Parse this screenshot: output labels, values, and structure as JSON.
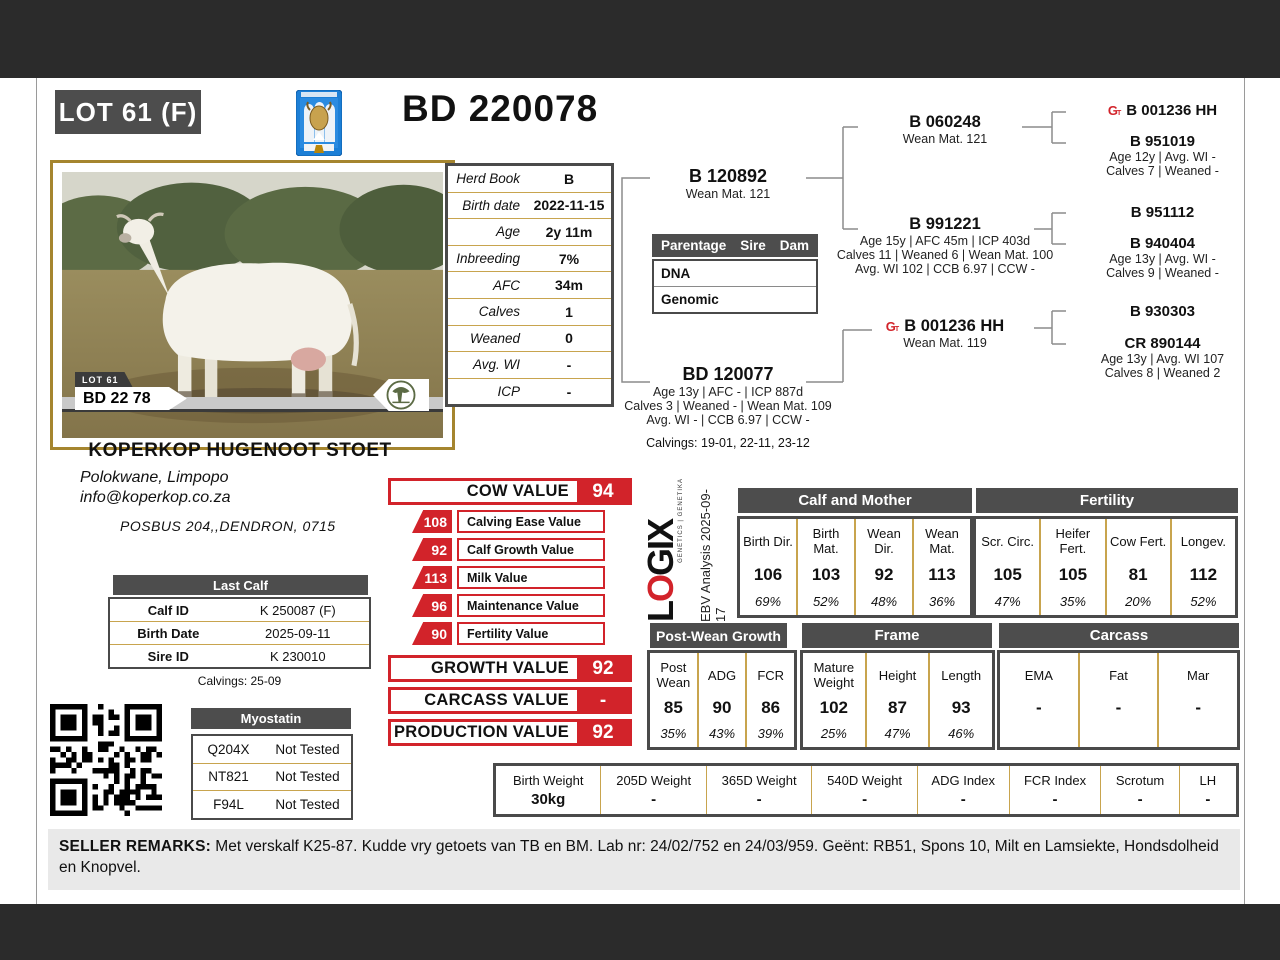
{
  "page": {
    "lot": "LOT 61 (F)",
    "title": "BD 220078"
  },
  "photo": {
    "lot_chip": "LOT 61",
    "ear_tag": "BD 22 78"
  },
  "herd_table": {
    "rows": [
      {
        "label": "Herd Book",
        "value": "B"
      },
      {
        "label": "Birth date",
        "value": "2022-11-15"
      },
      {
        "label": "Age",
        "value": "2y 11m"
      },
      {
        "label": "Inbreeding",
        "value": "7%"
      },
      {
        "label": "AFC",
        "value": "34m"
      },
      {
        "label": "Calves",
        "value": "1"
      },
      {
        "label": "Weaned",
        "value": "0"
      },
      {
        "label": "Avg. WI",
        "value": "-"
      },
      {
        "label": "ICP",
        "value": "-"
      }
    ]
  },
  "parentage": {
    "title": "Parentage",
    "sire_col": "Sire",
    "dam_col": "Dam",
    "rows": [
      "DNA",
      "Genomic"
    ]
  },
  "icons": {
    "genomic_g": "G",
    "genomic_t": "T"
  },
  "pedigree": {
    "sire": {
      "name": "B 120892",
      "lines": [
        "Wean Mat. 121"
      ]
    },
    "dam": {
      "name": "BD 120077",
      "lines": [
        "Age 13y | AFC - | ICP 887d",
        "Calves 3 | Weaned - | Wean Mat. 109",
        "Avg. WI - | CCB 6.97 | CCW -"
      ],
      "calvings": "Calvings: 19-01, 22-11, 23-12"
    },
    "gen2": [
      {
        "name": "B 060248",
        "lines": [
          "Wean Mat. 121"
        ]
      },
      {
        "name": "B 991221",
        "lines": [
          "Age 15y | AFC 45m | ICP 403d",
          "Calves 11 | Weaned 6 | Wean Mat. 100",
          "Avg. WI 102 | CCB 6.97 | CCW -"
        ]
      },
      {
        "name": "B 001236 HH",
        "lines": [
          "Wean Mat. 119"
        ]
      }
    ],
    "gen3": [
      {
        "name": "B 001236 HH",
        "lines": []
      },
      {
        "name": "B 951019",
        "lines": [
          "Age 12y | Avg. WI -",
          "Calves 7 | Weaned -"
        ]
      },
      {
        "name": "B 951112",
        "lines": []
      },
      {
        "name": "B 940404",
        "lines": [
          "Age 13y | Avg. WI -",
          "Calves 9 | Weaned -"
        ]
      },
      {
        "name": "B 930303",
        "lines": []
      },
      {
        "name": "CR 890144",
        "lines": [
          "Age 13y | Avg. WI 107",
          "Calves 8 | Weaned 2"
        ]
      }
    ]
  },
  "breeder": {
    "name": "KOPERKOP HUGENOOT STOET",
    "location": "Polokwane, Limpopo",
    "email": "info@koperkop.co.za",
    "address": "POSBUS 204,,DENDRON, 0715"
  },
  "last_calf": {
    "title": "Last Calf",
    "rows": [
      {
        "label": "Calf ID",
        "value": "K 250087 (F)"
      },
      {
        "label": "Birth Date",
        "value": "2025-09-11"
      },
      {
        "label": "Sire ID",
        "value": "K 230010"
      }
    ],
    "calvings": "Calvings: 25-09"
  },
  "myostatin": {
    "title": "Myostatin",
    "rows": [
      {
        "gene": "Q204X",
        "result": "Not Tested"
      },
      {
        "gene": "NT821",
        "result": "Not Tested"
      },
      {
        "gene": "F94L",
        "result": "Not Tested"
      }
    ]
  },
  "values": {
    "cow": {
      "label": "COW VALUE",
      "value": "94"
    },
    "subs": [
      {
        "value": "108",
        "label": "Calving Ease Value"
      },
      {
        "value": "92",
        "label": "Calf Growth Value"
      },
      {
        "value": "113",
        "label": "Milk Value"
      },
      {
        "value": "96",
        "label": "Maintenance Value"
      },
      {
        "value": "90",
        "label": "Fertility Value"
      }
    ],
    "growth": {
      "label": "GROWTH VALUE",
      "value": "92"
    },
    "carcass": {
      "label": "CARCASS VALUE",
      "value": "-"
    },
    "production": {
      "label": "PRODUCTION VALUE",
      "value": "92"
    }
  },
  "logix": {
    "brand_l": "L",
    "brand_o": "O",
    "brand_rest": "GIX",
    "tagline": "GENETICS | GENETIKA",
    "analysis": "EBV Analysis 2025-09-17"
  },
  "ebv": {
    "groups": [
      {
        "title": "Calf and Mother",
        "cells": [
          {
            "label": "Birth Dir.",
            "value": "106",
            "acc": "69%"
          },
          {
            "label": "Birth Mat.",
            "value": "103",
            "acc": "52%"
          },
          {
            "label": "Wean Dir.",
            "value": "92",
            "acc": "48%"
          },
          {
            "label": "Wean Mat.",
            "value": "113",
            "acc": "36%"
          }
        ]
      },
      {
        "title": "Fertility",
        "cells": [
          {
            "label": "Scr. Circ.",
            "value": "105",
            "acc": "47%"
          },
          {
            "label": "Heifer Fert.",
            "value": "105",
            "acc": "35%"
          },
          {
            "label": "Cow Fert.",
            "value": "81",
            "acc": "20%"
          },
          {
            "label": "Longev.",
            "value": "112",
            "acc": "52%"
          }
        ]
      },
      {
        "title": "Post-Wean Growth",
        "cells": [
          {
            "label": "Post Wean",
            "value": "85",
            "acc": "35%"
          },
          {
            "label": "ADG",
            "value": "90",
            "acc": "43%"
          },
          {
            "label": "FCR",
            "value": "86",
            "acc": "39%"
          }
        ]
      },
      {
        "title": "Frame",
        "cells": [
          {
            "label": "Mature Weight",
            "value": "102",
            "acc": "25%"
          },
          {
            "label": "Height",
            "value": "87",
            "acc": "47%"
          },
          {
            "label": "Length",
            "value": "93",
            "acc": "46%"
          }
        ]
      },
      {
        "title": "Carcass",
        "cells": [
          {
            "label": "EMA",
            "value": "-",
            "acc": ""
          },
          {
            "label": "Fat",
            "value": "-",
            "acc": ""
          },
          {
            "label": "Mar",
            "value": "-",
            "acc": ""
          }
        ]
      }
    ],
    "weights": [
      {
        "label": "Birth Weight",
        "value": "30kg"
      },
      {
        "label": "205D Weight",
        "value": "-"
      },
      {
        "label": "365D Weight",
        "value": "-"
      },
      {
        "label": "540D Weight",
        "value": "-"
      },
      {
        "label": "ADG Index",
        "value": "-"
      },
      {
        "label": "FCR Index",
        "value": "-"
      },
      {
        "label": "Scrotum",
        "value": "-"
      },
      {
        "label": "LH",
        "value": "-"
      }
    ]
  },
  "remarks": {
    "label": "SELLER REMARKS:",
    "text": "Met verskalf K25-87. Kudde vry getoets van TB en BM. Lab nr: 24/02/752 en 24/03/959. Geënt: RB51, Spons 10, Milt en Lamsiekte, Hondsdolheid en Knopvel."
  },
  "colors": {
    "accent_red": "#d2232a",
    "header_gray": "#4d4d4d",
    "gold_line": "#c8a44e",
    "photo_border": "#a5852f"
  }
}
